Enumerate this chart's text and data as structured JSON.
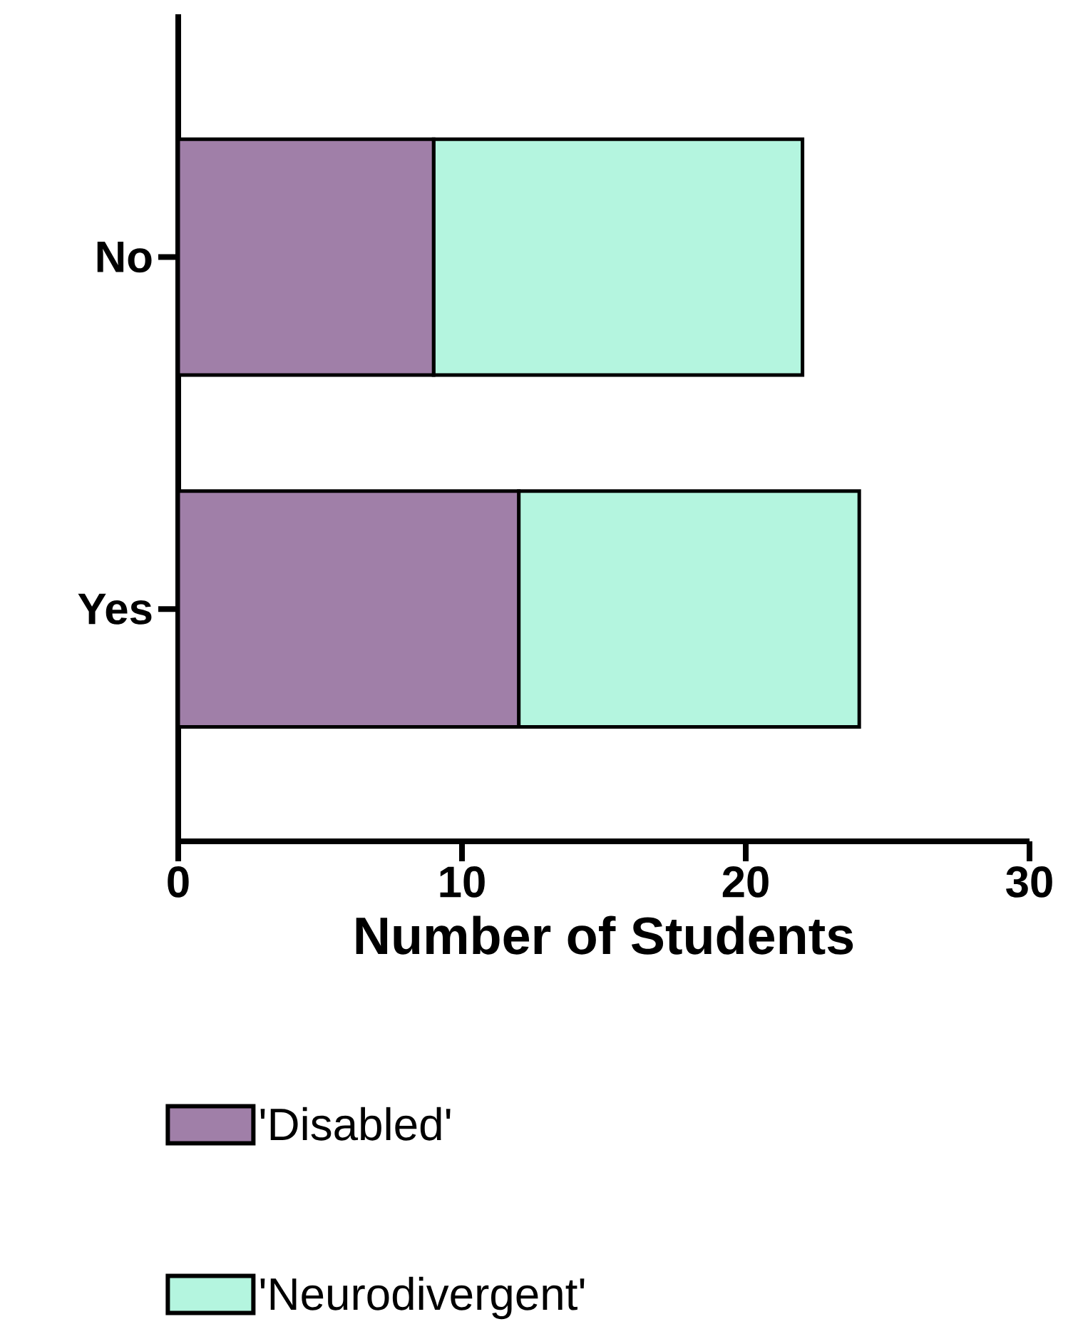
{
  "chart_data": {
    "type": "bar",
    "orientation": "horizontal",
    "stacked": true,
    "xlabel": "Number of Students",
    "categories": [
      "No",
      "Yes"
    ],
    "series": [
      {
        "name": "'Disabled'",
        "color": "#a07fa8",
        "values": [
          9,
          12
        ]
      },
      {
        "name": "'Neurodivergent'",
        "color": "#b4f5df",
        "values": [
          13,
          12
        ]
      }
    ],
    "xlim": [
      0,
      30
    ],
    "xticks": [
      0,
      10,
      20,
      30
    ],
    "legend": "bottom",
    "grid": false
  }
}
